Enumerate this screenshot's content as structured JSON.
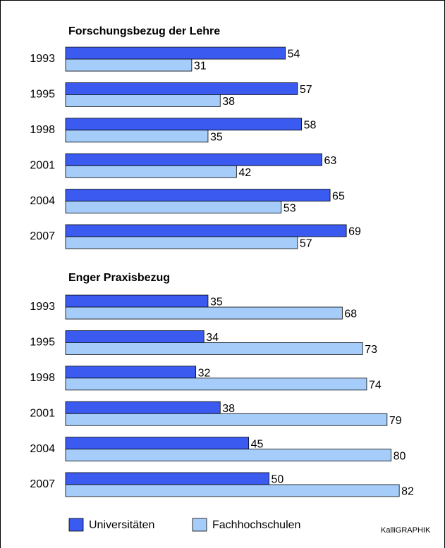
{
  "chart_data": [
    {
      "type": "bar",
      "orientation": "horizontal",
      "title": "Forschungsbezug der Lehre",
      "categories": [
        "1993",
        "1995",
        "1998",
        "2001",
        "2004",
        "2007"
      ],
      "category_label_colors": [
        "#000000",
        "#a0a0a0",
        "#a0a0a0",
        "#a0a0a0",
        "#a0a0a0",
        "#000000"
      ],
      "series": [
        {
          "name": "Universitäten",
          "color": "#3a5af0",
          "values": [
            54,
            57,
            58,
            63,
            65,
            69
          ]
        },
        {
          "name": "Fachhochschulen",
          "color": "#a6cdf9",
          "values": [
            31,
            38,
            35,
            42,
            53,
            57
          ]
        }
      ]
    },
    {
      "type": "bar",
      "orientation": "horizontal",
      "title": "Enger Praxisbezug",
      "categories": [
        "1993",
        "1995",
        "1998",
        "2001",
        "2004",
        "2007"
      ],
      "category_label_colors": [
        "#000000",
        "#a0a0a0",
        "#a0a0a0",
        "#a0a0a0",
        "#a0a0a0",
        "#000000"
      ],
      "series": [
        {
          "name": "Universitäten",
          "color": "#3a5af0",
          "values": [
            35,
            34,
            32,
            38,
            45,
            50
          ]
        },
        {
          "name": "Fachhochschulen",
          "color": "#a6cdf9",
          "values": [
            68,
            73,
            74,
            79,
            80,
            82
          ]
        }
      ]
    }
  ],
  "credit": "KalliGRAPHIK"
}
